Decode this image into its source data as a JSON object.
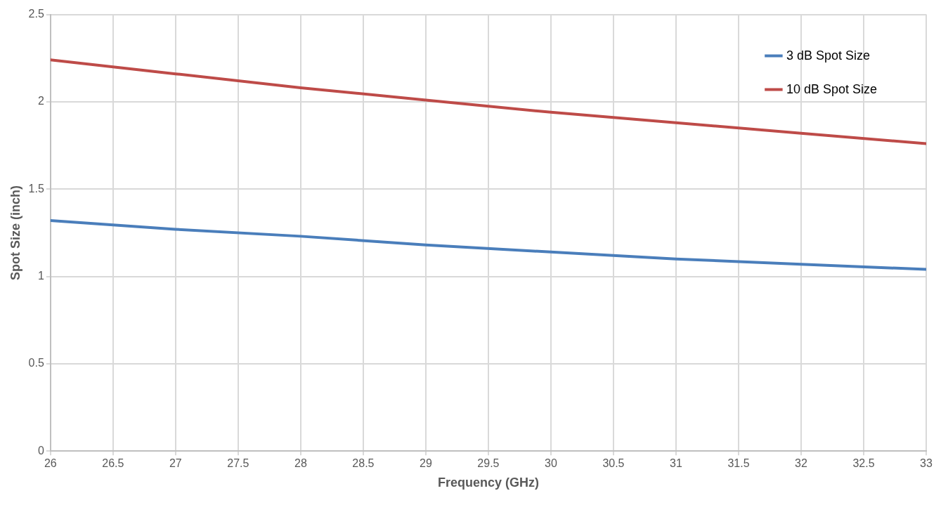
{
  "chart_data": {
    "type": "line",
    "xlabel": "Frequency (GHz)",
    "ylabel": "Spot Size (inch)",
    "x": [
      26,
      27,
      28,
      29,
      30,
      31,
      32,
      33
    ],
    "series": [
      {
        "name": "3 dB Spot Size",
        "color": "#4a7ebb",
        "values": [
          1.32,
          1.27,
          1.23,
          1.18,
          1.14,
          1.1,
          1.07,
          1.04
        ]
      },
      {
        "name": "10 dB Spot Size",
        "color": "#be4b48",
        "values": [
          2.24,
          2.16,
          2.08,
          2.01,
          1.94,
          1.88,
          1.82,
          1.76
        ]
      }
    ],
    "xlim": [
      26,
      33
    ],
    "xticks": [
      26,
      26.5,
      27,
      27.5,
      28,
      28.5,
      29,
      29.5,
      30,
      30.5,
      31,
      31.5,
      32,
      32.5,
      33
    ],
    "ylim": [
      0,
      2.5
    ],
    "yticks": [
      0,
      0.5,
      1,
      1.5,
      2,
      2.5
    ],
    "grid": true,
    "legend": "top right",
    "marker": "none",
    "line_style": "solid"
  }
}
